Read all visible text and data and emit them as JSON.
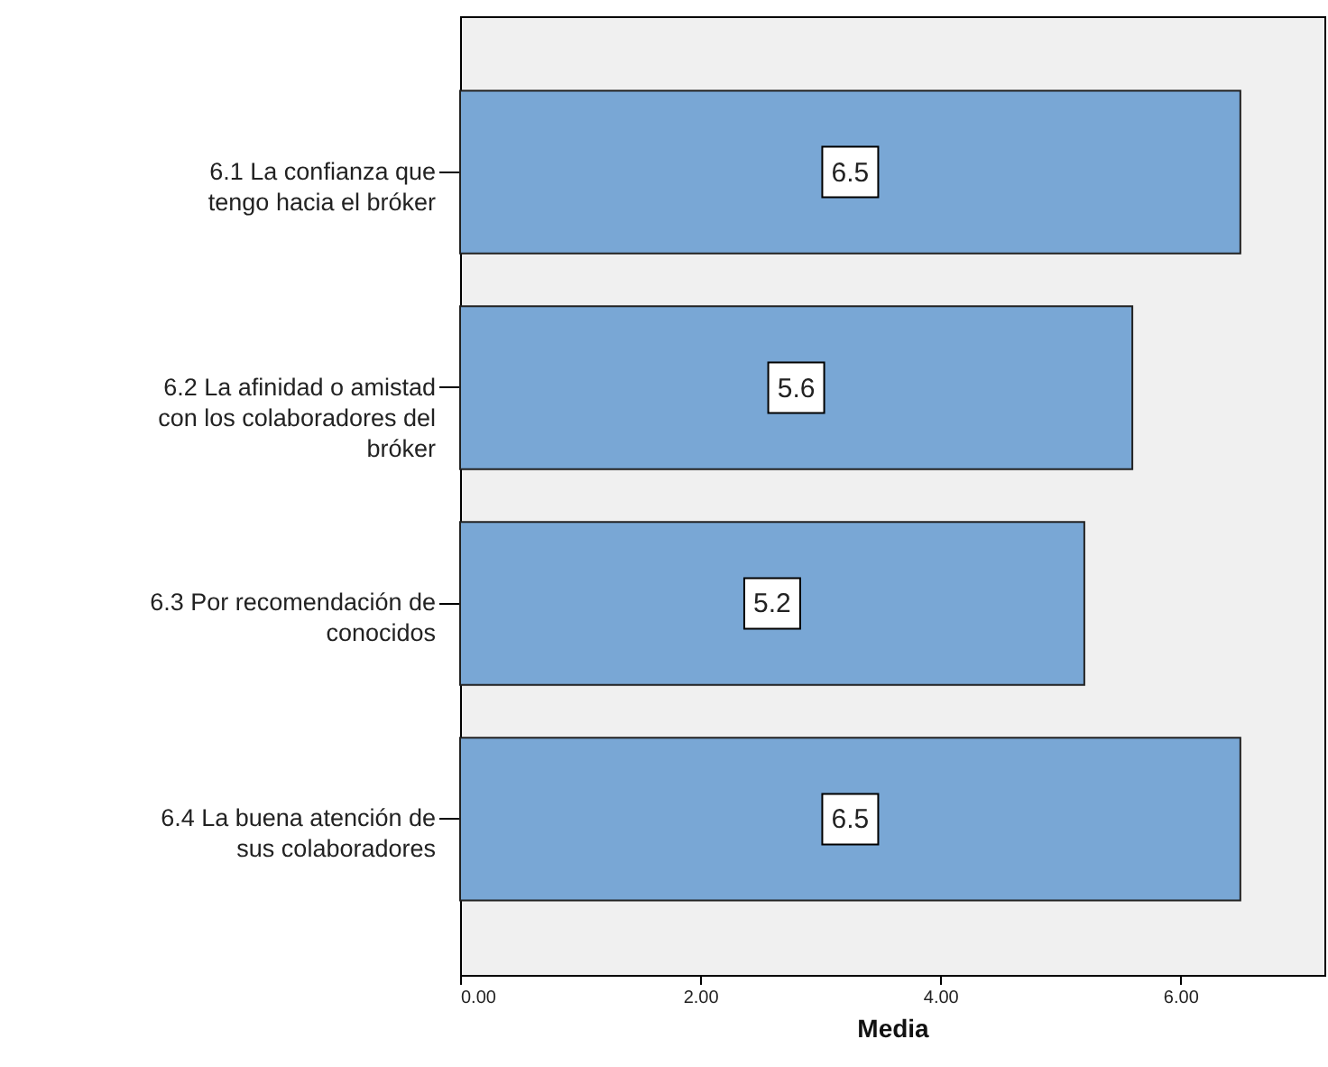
{
  "chart_data": {
    "type": "bar",
    "orientation": "horizontal",
    "xlabel": "Media",
    "categories": [
      "6.1 La confianza que tengo hacia el bróker",
      "6.2 La afinidad o amistad con los colaboradores del bróker",
      "6.3 Por recomendación de conocidos",
      "6.4 La buena atención de sus colaboradores"
    ],
    "values": [
      6.5,
      5.6,
      5.2,
      6.5
    ],
    "color": "#79a7d5",
    "data_labels": true,
    "xlim": [
      0,
      7.2
    ],
    "xticks": [
      {
        "value": 0,
        "label": "0.00"
      },
      {
        "value": 2,
        "label": "2.00"
      },
      {
        "value": 4,
        "label": "4.00"
      },
      {
        "value": 6,
        "label": "6.00"
      }
    ],
    "grid": false
  }
}
